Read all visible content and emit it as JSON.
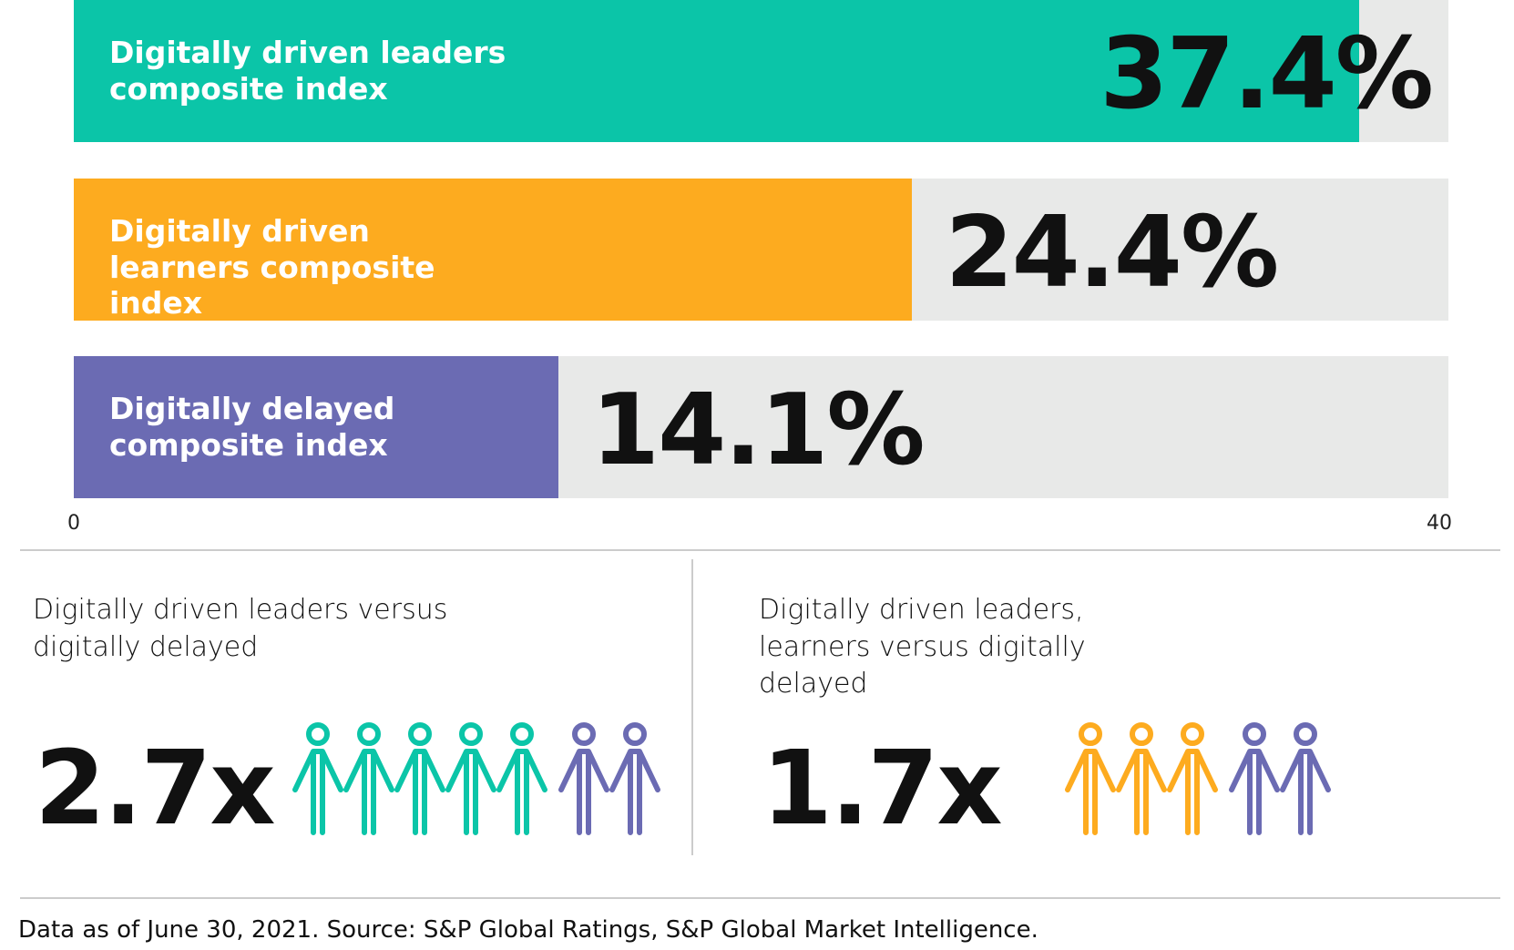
{
  "chart_data": {
    "type": "bar",
    "orientation": "horizontal",
    "categories": [
      "Digitally driven leaders composite index",
      "Digitally driven learners composite index",
      "Digitally delayed composite index"
    ],
    "values": [
      37.4,
      24.4,
      14.1
    ],
    "value_labels": [
      "37.4%",
      "24.4%",
      "14.1%"
    ],
    "colors": [
      "#0bc5a8",
      "#fdab1f",
      "#6b6bb3"
    ],
    "xlim": [
      0,
      40
    ],
    "xticks": [
      0,
      40
    ]
  },
  "comparisons": [
    {
      "title": "Digitally driven leaders versus digitally delayed",
      "value": "2.7x"
    },
    {
      "title": "Digitally driven leaders, learners versus digitally delayed",
      "value": "1.7x"
    }
  ],
  "footer": "Data as of June 30, 2021. Source: S&P Global Ratings, S&P Global Market Intelligence."
}
